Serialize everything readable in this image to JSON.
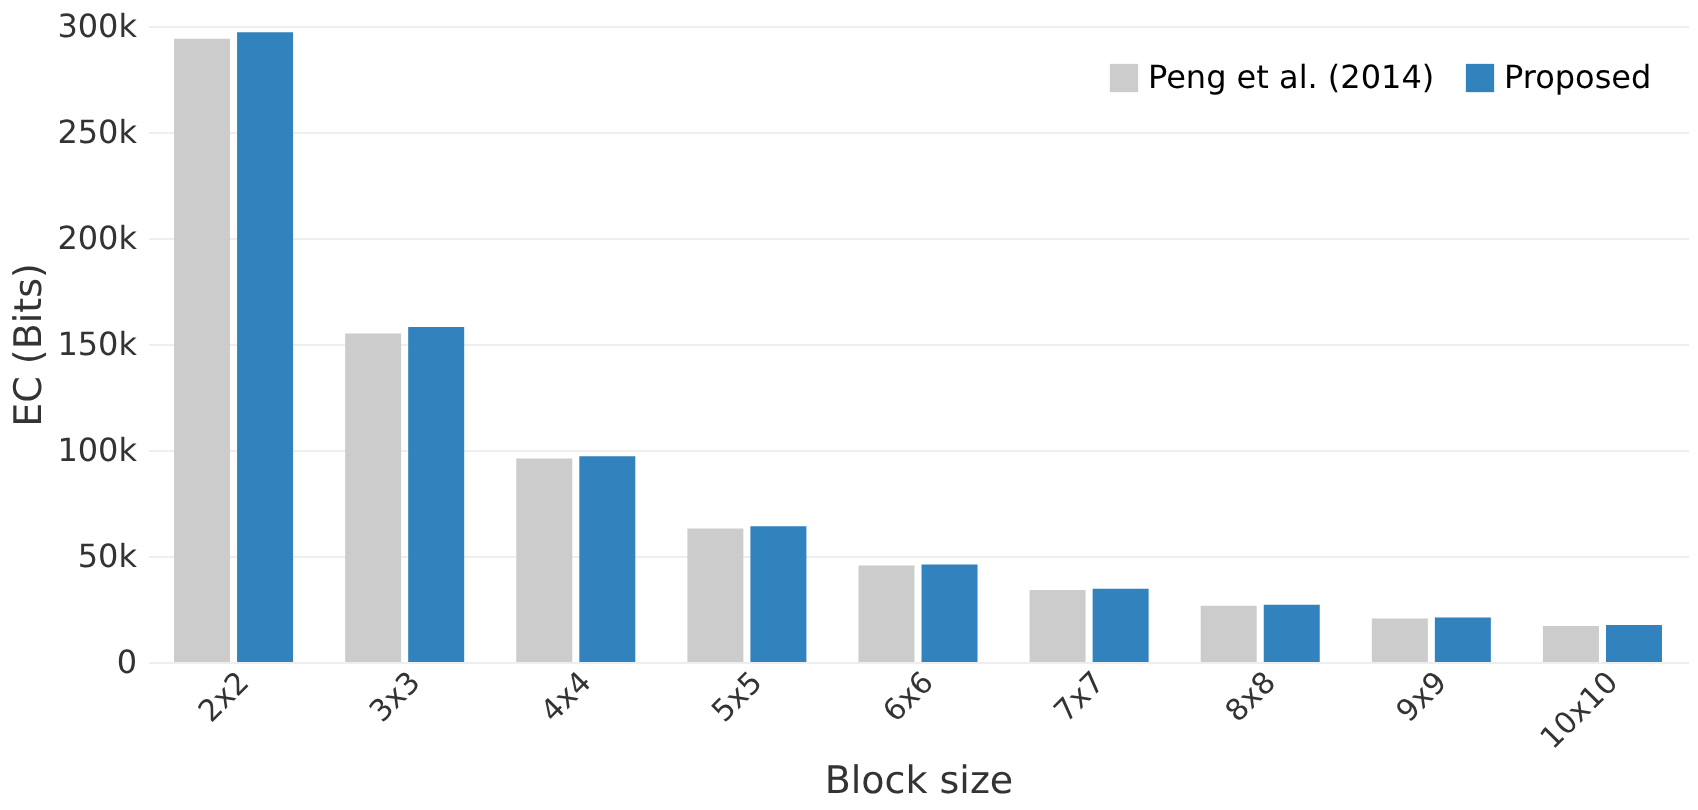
{
  "chart_data": {
    "type": "bar",
    "xlabel": "Block size",
    "ylabel": "EC (Bits)",
    "categories": [
      "2x2",
      "3x3",
      "4x4",
      "5x5",
      "6x6",
      "7x7",
      "8x8",
      "9x9",
      "10x10"
    ],
    "series": [
      {
        "name": "Peng et al. (2014)",
        "color": "#cccccc",
        "values": [
          294000,
          155000,
          96000,
          63000,
          45500,
          34000,
          26500,
          20500,
          17000
        ]
      },
      {
        "name": "Proposed",
        "color": "#3182bd",
        "values": [
          297000,
          158000,
          97000,
          64000,
          46000,
          34500,
          27000,
          21000,
          17500
        ]
      }
    ],
    "ylim": [
      0,
      300000
    ],
    "yticks": [
      {
        "value": 0,
        "label": "0"
      },
      {
        "value": 50000,
        "label": "50k"
      },
      {
        "value": 100000,
        "label": "100k"
      },
      {
        "value": 150000,
        "label": "150k"
      },
      {
        "value": 200000,
        "label": "200k"
      },
      {
        "value": 250000,
        "label": "250k"
      },
      {
        "value": 300000,
        "label": "300k"
      }
    ],
    "grid": "y",
    "legend": "top right"
  }
}
